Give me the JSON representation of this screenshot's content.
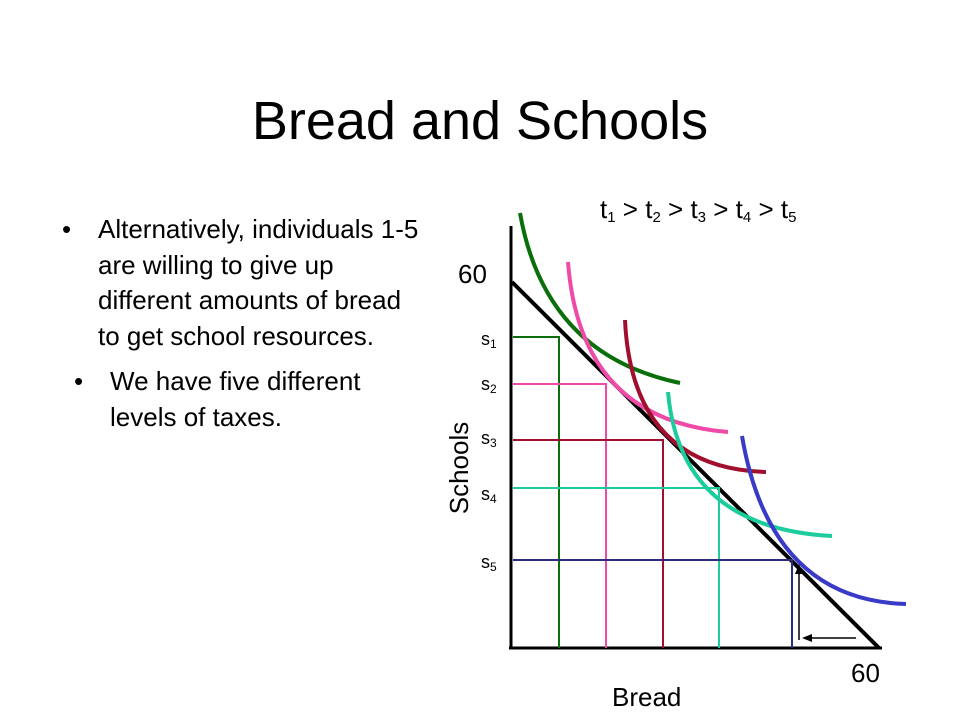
{
  "slide": {
    "title": "Bread and Schools",
    "bullets": [
      "Alternatively, individuals 1-5 are willing to give up different amounts of bread to get school resources.",
      "We have five different levels of taxes."
    ]
  },
  "diagram": {
    "ordering": {
      "t1": "t",
      "s1": "1",
      "gt1": " > ",
      "t2": "t",
      "s2": "2",
      "gt2": " > ",
      "t3": "t",
      "s3": "3",
      "gt3": " > ",
      "t4": "t",
      "s4": "4",
      "gt4": " > ",
      "t5": "t",
      "s5": "5"
    },
    "y_axis_label": "Schools",
    "x_axis_label": "Bread",
    "y_max_label": "60",
    "x_max_label": "60",
    "school_levels": [
      {
        "letter": "s",
        "sub": "1"
      },
      {
        "letter": "s",
        "sub": "2"
      },
      {
        "letter": "s",
        "sub": "3"
      },
      {
        "letter": "s",
        "sub": "4"
      },
      {
        "letter": "s",
        "sub": "5"
      }
    ],
    "colors": {
      "budget_line": "#000000",
      "curve_1": "#0a6e0a",
      "curve_2": "#f04aa8",
      "curve_3": "#a0102e",
      "curve_4": "#1ccc9c",
      "curve_5": "#3a3ac8",
      "level_5": "#2c2c7a"
    }
  }
}
